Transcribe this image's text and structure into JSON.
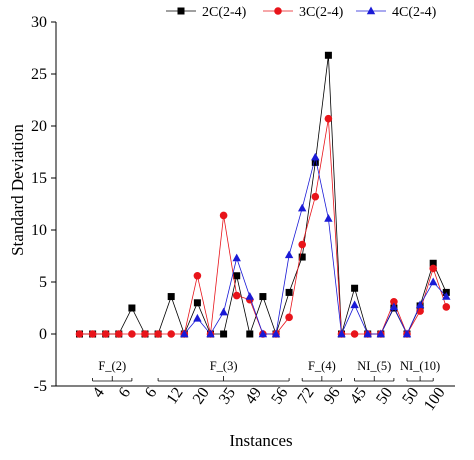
{
  "chart_data": {
    "type": "line",
    "xlabel": "Instances",
    "ylabel": "Standard Deviation",
    "ylim": [
      -5,
      30
    ],
    "yticks": [
      -5,
      0,
      5,
      10,
      15,
      20,
      25,
      30
    ],
    "grid": false,
    "legend_position": "top-right",
    "x_tick_labels": [
      "4",
      "6",
      "6",
      "12",
      "20",
      "35",
      "49",
      "56",
      "72",
      "96",
      "45",
      "50",
      "50",
      "100"
    ],
    "groups": [
      {
        "label": "F_(2)",
        "from": 1,
        "to": 4
      },
      {
        "label": "F_(3)",
        "from": 6,
        "to": 16
      },
      {
        "label": "F_(4)",
        "from": 17,
        "to": 20
      },
      {
        "label": "NI_(5)",
        "from": 21,
        "to": 24
      },
      {
        "label": "NI_(10)",
        "from": 25,
        "to": 27
      }
    ],
    "series": [
      {
        "name": "2C(2-4)",
        "color": "#000000",
        "marker": "square",
        "values": [
          0,
          0,
          0,
          0,
          2.5,
          0,
          0,
          3.6,
          0,
          3,
          0,
          0,
          5.6,
          0,
          3.6,
          0,
          4,
          7.4,
          16.5,
          26.8,
          0,
          4.4,
          0,
          0,
          2.5,
          0,
          2.7,
          6.8,
          4
        ]
      },
      {
        "name": "3C(2-4)",
        "color": "#e8141a",
        "marker": "circle",
        "values": [
          0,
          0,
          0,
          0,
          0,
          0,
          0,
          0,
          0,
          5.6,
          0,
          11.4,
          3.7,
          3.3,
          0,
          0,
          1.6,
          8.6,
          13.2,
          20.7,
          0,
          0,
          0,
          0,
          3.1,
          0,
          2.2,
          6.3,
          2.6
        ]
      },
      {
        "name": "4C(2-4)",
        "color": "#1a1ad6",
        "marker": "triangle",
        "values": [
          null,
          null,
          null,
          null,
          null,
          null,
          null,
          null,
          0,
          1.5,
          0,
          2.1,
          7.3,
          3.6,
          0,
          0,
          7.6,
          12.1,
          17,
          11.1,
          0,
          2.8,
          0,
          0,
          2.6,
          0,
          2.8,
          5,
          3.6
        ]
      }
    ]
  }
}
